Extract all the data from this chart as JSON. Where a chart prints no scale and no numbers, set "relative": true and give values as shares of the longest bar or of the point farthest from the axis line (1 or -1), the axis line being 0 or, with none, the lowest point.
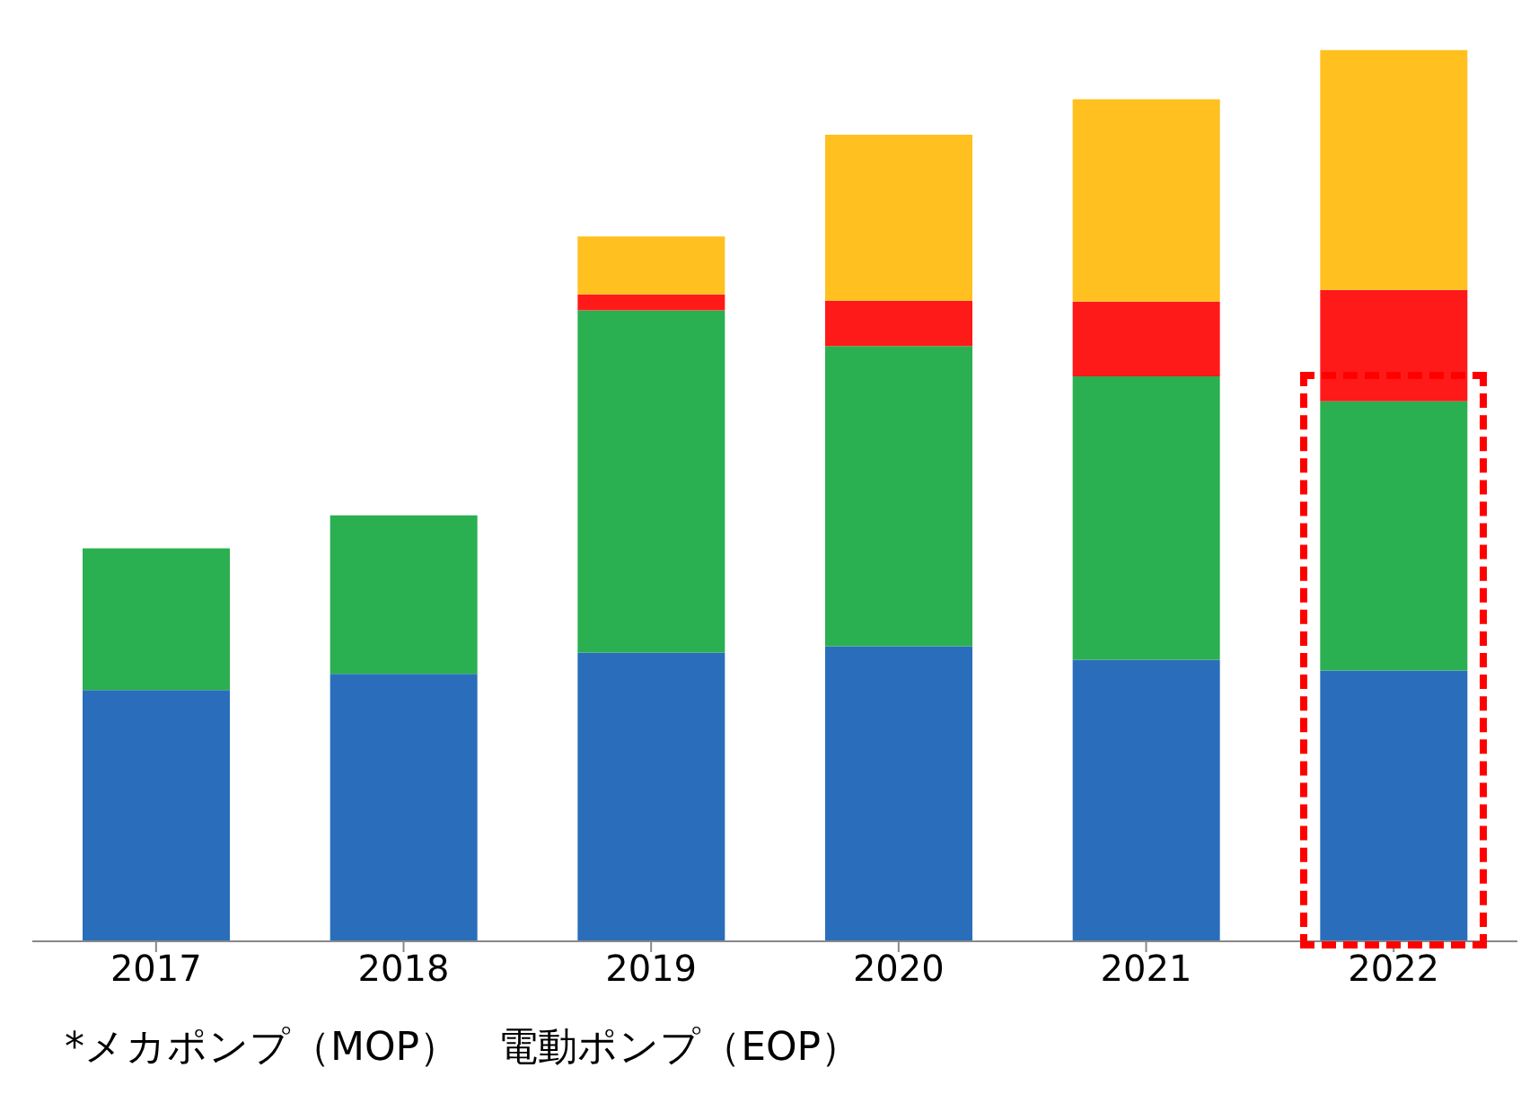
{
  "chart_data": {
    "type": "bar",
    "stacked": true,
    "relative": true,
    "categories": [
      "2017",
      "2018",
      "2019",
      "2020",
      "2021",
      "2022"
    ],
    "series": [
      {
        "color": "#2a6ebb",
        "values": [
          0.282,
          0.3,
          0.324,
          0.331,
          0.316,
          0.304
        ]
      },
      {
        "color": "#2ab050",
        "values": [
          0.159,
          0.178,
          0.384,
          0.337,
          0.318,
          0.302
        ]
      },
      {
        "color": "#ff1a1a",
        "values": [
          null,
          null,
          0.018,
          0.051,
          0.084,
          0.125
        ]
      },
      {
        "color": "#ffc020",
        "values": [
          null,
          null,
          0.065,
          0.186,
          0.227,
          0.269
        ]
      }
    ],
    "annotations": [
      "*メカポンプ（MOP）　電動ポンプ（EOP）"
    ],
    "grid": false,
    "legend": false
  }
}
